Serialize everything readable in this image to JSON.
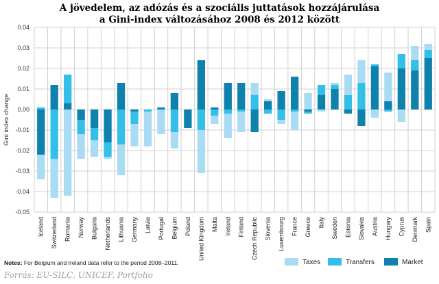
{
  "title_line1": "A jövedelem, az adózás és a szociális juttatások hozzájárulása",
  "title_line2": "a Gini-index változásához 2008 és 2012 között",
  "notes_label": "Notes:",
  "notes_text": "For Belgium and Ireland data refer to the period 2008–2011.",
  "source": "Forrás: EU-SILC, UNICEF, Portfolio",
  "colors": {
    "taxes": "#a9dcf2",
    "transfers": "#33bfe8",
    "market": "#0f81ad",
    "grid": "#d0d0d0"
  },
  "chart_data": {
    "type": "bar",
    "stacked": true,
    "ylabel": "Gini index change",
    "ylim": [
      -0.05,
      0.04
    ],
    "yticks": [
      "0.04",
      "0.03",
      "0.02",
      "0.01",
      "0.00",
      "-0.01",
      "-0.02",
      "-0.03",
      "-0.04",
      "-0.05"
    ],
    "ytick_values": [
      0.04,
      0.03,
      0.02,
      0.01,
      0.0,
      -0.01,
      -0.02,
      -0.03,
      -0.04,
      -0.05
    ],
    "legend_position": "bottom-right",
    "categories": [
      "Iceland",
      "Switzerland",
      "Romania",
      "Norway",
      "Bulgaria",
      "Netherlands",
      "Lithuania",
      "Germany",
      "Latvia",
      "Portugal",
      "Belgium",
      "Poland",
      "United Kingdom",
      "Malta",
      "Ireland",
      "Finland",
      "Czech Republic",
      "Slovenia",
      "Luxembourg",
      "France",
      "Greece",
      "Italy",
      "Sweden",
      "Estonia",
      "Slovakia",
      "Austria",
      "Hungary",
      "Cyprus",
      "Denmark",
      "Spain"
    ],
    "series": [
      {
        "name": "Market",
        "values": [
          -0.022,
          0.012,
          0.003,
          -0.005,
          -0.009,
          -0.016,
          0.013,
          -0.001,
          0.0,
          0.001,
          0.008,
          -0.009,
          0.024,
          0.001,
          0.013,
          0.013,
          -0.011,
          0.004,
          0.009,
          0.016,
          -0.001,
          0.007,
          0.01,
          -0.002,
          -0.008,
          0.021,
          0.004,
          0.02,
          0.019,
          0.025
        ]
      },
      {
        "name": "Transfers",
        "values": [
          0.001,
          -0.024,
          0.014,
          -0.007,
          -0.006,
          -0.007,
          -0.017,
          -0.006,
          -0.001,
          0.0,
          -0.011,
          0.0,
          -0.01,
          -0.003,
          -0.002,
          -0.001,
          0.007,
          -0.002,
          -0.005,
          -0.001,
          -0.001,
          0.005,
          0.002,
          0.007,
          0.013,
          0.001,
          -0.001,
          0.007,
          0.005,
          0.004
        ]
      },
      {
        "name": "Taxes",
        "values": [
          -0.012,
          -0.019,
          -0.042,
          -0.012,
          -0.008,
          -0.001,
          -0.015,
          -0.011,
          -0.017,
          -0.012,
          -0.008,
          0.0,
          -0.021,
          -0.004,
          -0.012,
          -0.01,
          0.006,
          0.001,
          -0.002,
          -0.009,
          0.008,
          -0.001,
          0.001,
          0.01,
          0.011,
          -0.004,
          0.014,
          -0.006,
          0.007,
          0.003
        ]
      }
    ]
  }
}
